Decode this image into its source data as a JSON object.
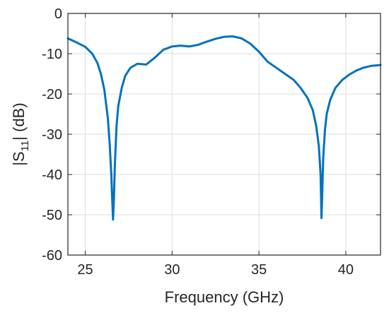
{
  "chart_data": {
    "type": "line",
    "xlabel": "Frequency (GHz)",
    "ylabel": {
      "prefix": "|S",
      "sub": "11",
      "suffix": "| (dB)"
    },
    "xlim": [
      24,
      42
    ],
    "ylim": [
      -60,
      0
    ],
    "xticks": [
      25,
      30,
      35,
      40
    ],
    "yticks": [
      0,
      -10,
      -20,
      -30,
      -40,
      -50,
      -60
    ],
    "grid": true,
    "line_color": "#0072BD",
    "series": [
      {
        "x": [
          24.0,
          24.5,
          25.0,
          25.4,
          25.7,
          25.9,
          26.1,
          26.3,
          26.4,
          26.5,
          26.55,
          26.6,
          26.65,
          26.7,
          26.8,
          26.9,
          27.1,
          27.3,
          27.6,
          28.0,
          28.5,
          29.0,
          29.5,
          30.0,
          30.5,
          31.0,
          31.5,
          32.0,
          32.5,
          33.0,
          33.5,
          34.0,
          34.5,
          35.0,
          35.5,
          36.0,
          36.5,
          37.0,
          37.4,
          37.8,
          38.1,
          38.3,
          38.45,
          38.55,
          38.6,
          38.65,
          38.7,
          38.8,
          38.9,
          39.1,
          39.4,
          39.8,
          40.2,
          40.6,
          41.0,
          41.5,
          42.0
        ],
        "y": [
          -6.2,
          -7.2,
          -8.3,
          -10.0,
          -12.3,
          -15.0,
          -19.0,
          -26.0,
          -32.0,
          -40.0,
          -46.0,
          -51.2,
          -46.0,
          -38.0,
          -28.0,
          -23.0,
          -18.5,
          -15.5,
          -13.5,
          -12.5,
          -12.7,
          -11.0,
          -9.0,
          -8.2,
          -8.0,
          -8.2,
          -7.8,
          -7.0,
          -6.3,
          -5.8,
          -5.7,
          -6.2,
          -7.5,
          -9.5,
          -12.0,
          -13.5,
          -15.0,
          -16.5,
          -18.5,
          -21.0,
          -24.0,
          -28.0,
          -33.0,
          -40.0,
          -50.8,
          -44.0,
          -36.0,
          -29.0,
          -25.0,
          -21.5,
          -18.5,
          -16.5,
          -15.2,
          -14.2,
          -13.5,
          -13.0,
          -12.8
        ]
      }
    ]
  }
}
